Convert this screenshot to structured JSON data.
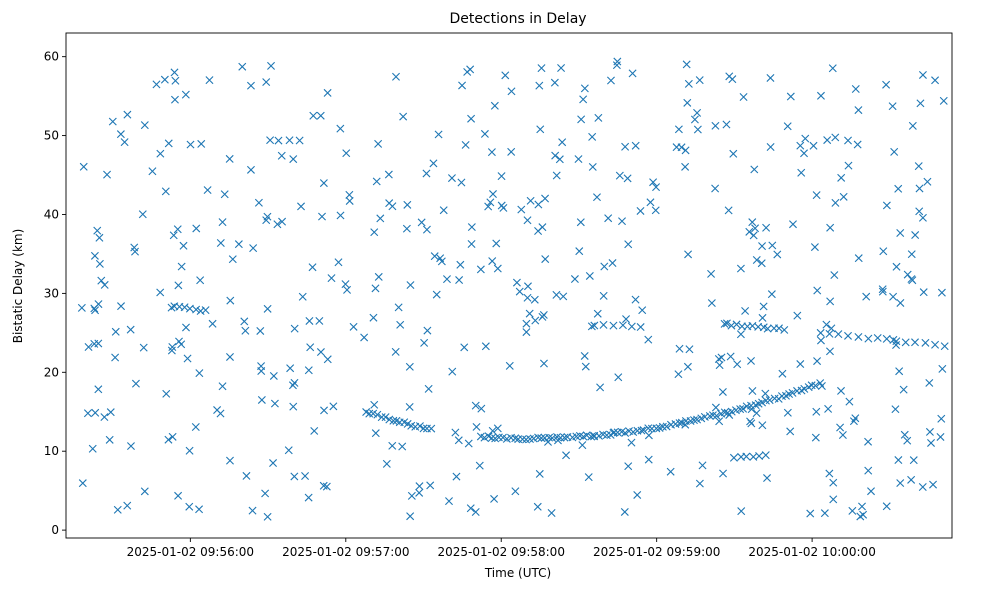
{
  "chart_data": {
    "type": "scatter",
    "title": "Detections in Delay",
    "xlabel": "Time (UTC)",
    "ylabel": "Bistatic Delay (km)",
    "xlim": [
      -0.35,
      5.35
    ],
    "ylim": [
      -1.0,
      63.0
    ],
    "x_unit": "minutes after 2025-01-02 09:55:33 UTC (approx.)",
    "xticks": [
      {
        "value": 0.45,
        "label": "2025-01-02 09:56:00"
      },
      {
        "value": 1.45,
        "label": "2025-01-02 09:57:00"
      },
      {
        "value": 2.45,
        "label": "2025-01-02 09:58:00"
      },
      {
        "value": 3.45,
        "label": "2025-01-02 09:59:00"
      },
      {
        "value": 4.45,
        "label": "2025-01-02 10:00:00"
      }
    ],
    "yticks": [
      0,
      10,
      20,
      30,
      40,
      50,
      60
    ],
    "marker": "x",
    "color": "#1f77b4",
    "tracks": [
      {
        "name": "track-upper-left",
        "from": 0.35,
        "to": 0.55,
        "y_start": 28.3,
        "y_end": 27.8,
        "n": 7
      },
      {
        "name": "track-lower-arc",
        "from": 1.58,
        "to": 4.5,
        "vertex_x": 2.6,
        "vertex_y": 11.6,
        "left_y": 15.0,
        "right_y": 18.6,
        "gap": [
          2.0,
          2.3
        ],
        "n": 120
      },
      {
        "name": "track-right-upper",
        "from": 3.9,
        "to": 4.27,
        "y_start": 26.1,
        "y_end": 25.4,
        "n": 12
      },
      {
        "name": "track-right-tail",
        "from": 4.5,
        "to": 5.3,
        "y_start": 25.0,
        "y_end": 23.4,
        "n": 14
      },
      {
        "name": "track-mid-cluster",
        "from": 3.05,
        "to": 3.35,
        "y_start": 26.0,
        "y_end": 25.8,
        "n": 6
      },
      {
        "name": "track-right-low",
        "from": 3.95,
        "to": 4.15,
        "y_start": 9.2,
        "y_end": 9.4,
        "n": 6
      }
    ],
    "clutter_count": 520,
    "points": []
  }
}
